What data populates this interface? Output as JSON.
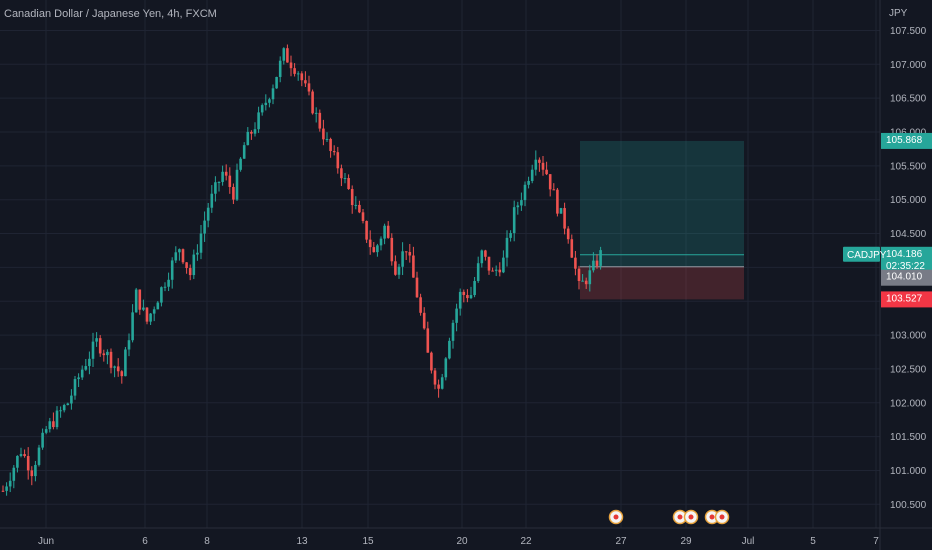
{
  "header": {
    "title": "Canadian Dollar / Japanese Yen, 4h, FXCM"
  },
  "colors": {
    "background": "#131722",
    "up": "#26a69a",
    "down": "#ef5350",
    "grid": "#1f2433",
    "text": "#b2b5be",
    "profit_zone": "#26a69a",
    "loss_zone": "#ef5350",
    "price_tag": "#26a69a",
    "entry_tag": "#787b86",
    "stop_tag": "#f23645"
  },
  "chart_data": {
    "type": "candlestick",
    "title": "Canadian Dollar / Japanese Yen, 4h, FXCM",
    "y_axis": {
      "unit": "JPY",
      "range": [
        100.15,
        107.95
      ],
      "ticks": [
        100.5,
        101.0,
        101.5,
        102.0,
        102.5,
        103.0,
        103.5,
        104.0,
        104.5,
        105.0,
        105.5,
        106.0,
        106.5,
        107.0,
        107.5
      ],
      "tick_labels": [
        "100.500",
        "101.000",
        "101.500",
        "102.000",
        "102.500",
        "103.000",
        "103.500",
        "104.000",
        "104.500",
        "105.000",
        "105.500",
        "106.000",
        "106.500",
        "107.000",
        "107.500"
      ]
    },
    "x_axis": {
      "labels": [
        "Jun",
        "6",
        "8",
        "13",
        "15",
        "20",
        "22",
        "27",
        "29",
        "1 Jul",
        "5",
        "7"
      ],
      "display_labels": [
        "Jun",
        "6",
        "8",
        "13",
        "15",
        "20",
        "22",
        "27",
        "29",
        "Jul",
        "5",
        "7"
      ]
    },
    "grid": true,
    "close_path": [
      [
        0,
        100.7
      ],
      [
        5,
        101.3
      ],
      [
        8,
        101.0
      ],
      [
        12,
        101.6
      ],
      [
        18,
        102.0
      ],
      [
        22,
        102.5
      ],
      [
        26,
        102.9
      ],
      [
        29,
        102.7
      ],
      [
        33,
        102.4
      ],
      [
        37,
        103.6
      ],
      [
        40,
        103.2
      ],
      [
        45,
        103.8
      ],
      [
        49,
        104.3
      ],
      [
        52,
        103.9
      ],
      [
        57,
        104.9
      ],
      [
        61,
        105.4
      ],
      [
        64,
        105.1
      ],
      [
        67,
        105.8
      ],
      [
        71,
        106.2
      ],
      [
        75,
        106.7
      ],
      [
        78,
        107.15
      ],
      [
        82,
        106.9
      ],
      [
        85,
        106.5
      ],
      [
        88,
        106.1
      ],
      [
        91,
        105.7
      ],
      [
        94,
        105.4
      ],
      [
        97,
        105.0
      ],
      [
        100,
        104.6
      ],
      [
        103,
        104.2
      ],
      [
        106,
        104.6
      ],
      [
        109,
        104.0
      ],
      [
        112,
        104.3
      ],
      [
        115,
        103.6
      ],
      [
        118,
        102.7
      ],
      [
        121,
        102.2
      ],
      [
        124,
        103.0
      ],
      [
        127,
        103.6
      ],
      [
        130,
        103.6
      ],
      [
        133,
        104.2
      ],
      [
        136,
        103.9
      ],
      [
        139,
        104.1
      ],
      [
        142,
        104.8
      ],
      [
        145,
        105.2
      ],
      [
        148,
        105.7
      ],
      [
        151,
        105.4
      ],
      [
        154,
        104.9
      ],
      [
        157,
        104.5
      ],
      [
        160,
        103.7
      ],
      [
        163,
        103.9
      ],
      [
        166,
        104.19
      ]
    ],
    "position": {
      "type": "long",
      "entry": 104.01,
      "target": 105.868,
      "stop": 103.527
    },
    "last_price": {
      "symbol": "CADJPY",
      "price": "104.186",
      "countdown": "02:35:22"
    },
    "price_labels": {
      "target": "105.868",
      "entry": "104.010",
      "stop": "103.527"
    },
    "event_markers": [
      {
        "date": "26",
        "count": 1
      },
      {
        "date": "28-29",
        "count": 2
      },
      {
        "date": "30",
        "count": 2
      }
    ]
  }
}
